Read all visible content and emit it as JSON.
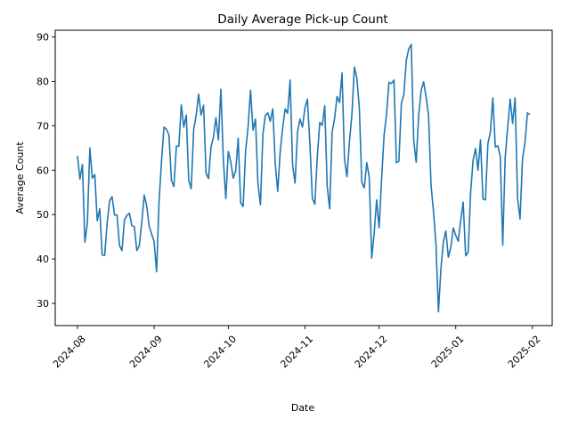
{
  "chart_data": {
    "type": "line",
    "title": "Daily Average Pick-up Count",
    "xlabel": "Date",
    "ylabel": "Average Count",
    "xlim": [
      "2024-07-23",
      "2025-02-09"
    ],
    "ylim": [
      25,
      91.5
    ],
    "grid": false,
    "legend": "none",
    "x_ticks": [
      "2024-08",
      "2024-09",
      "2024-10",
      "2024-11",
      "2024-12",
      "2025-01",
      "2025-02"
    ],
    "y_ticks": [
      30,
      40,
      50,
      60,
      70,
      80,
      90
    ],
    "x_tick_rotation_deg": 45,
    "series": [
      {
        "color": "#1f77b4",
        "x_start": "2024-08-01",
        "x_step": "1 day",
        "values": [
          63.2,
          58.0,
          61.3,
          43.8,
          48.0,
          65.0,
          58.2,
          59.0,
          48.6,
          51.3,
          40.9,
          40.8,
          48.0,
          53.1,
          54.0,
          49.9,
          49.9,
          43.0,
          41.9,
          48.8,
          49.8,
          50.3,
          47.5,
          47.3,
          41.9,
          43.0,
          48.2,
          54.4,
          51.9,
          47.4,
          45.6,
          43.9,
          37.1,
          53.0,
          62.1,
          69.7,
          69.2,
          67.9,
          57.7,
          56.3,
          65.4,
          65.4,
          74.7,
          69.7,
          72.4,
          57.7,
          55.8,
          69.1,
          72.3,
          77.1,
          72.4,
          74.6,
          59.4,
          58.1,
          65.2,
          67.4,
          71.8,
          66.8,
          78.2,
          62.3,
          53.6,
          64.2,
          61.9,
          58.2,
          59.9,
          67.2,
          52.7,
          51.8,
          64.3,
          69.7,
          78.0,
          69.0,
          71.5,
          56.9,
          52.2,
          68.1,
          72.4,
          72.9,
          71.0,
          73.8,
          61.4,
          55.2,
          64.3,
          69.5,
          73.8,
          72.8,
          80.3,
          61.2,
          57.1,
          68.6,
          71.5,
          69.7,
          74.0,
          76.0,
          66.0,
          53.7,
          52.3,
          63.0,
          70.7,
          70.1,
          74.5,
          56.4,
          51.3,
          68.6,
          71.7,
          76.6,
          75.2,
          81.9,
          62.5,
          58.5,
          66.4,
          72.5,
          83.2,
          80.8,
          74.0,
          57.2,
          56.0,
          61.7,
          58.4,
          40.2,
          45.8,
          53.3,
          47.0,
          57.9,
          67.8,
          72.6,
          79.8,
          79.5,
          80.3,
          61.7,
          62.0,
          75.0,
          77.0,
          84.7,
          87.3,
          88.3,
          66.7,
          61.8,
          72.3,
          77.9,
          79.9,
          76.5,
          72.3,
          56.7,
          50.6,
          43.3,
          28.1,
          37.8,
          43.9,
          46.3,
          40.4,
          42.6,
          47.0,
          45.3,
          44.0,
          48.6,
          52.8,
          40.7,
          41.5,
          54.8,
          62.2,
          64.9,
          60.0,
          66.8,
          53.5,
          53.3,
          66.0,
          68.5,
          76.3,
          65.2,
          65.5,
          63.1,
          43.1,
          62.9,
          69.6,
          76.0,
          70.5,
          76.3,
          53.7,
          49.0,
          62.5,
          66.2,
          72.9,
          72.5
        ]
      }
    ]
  }
}
